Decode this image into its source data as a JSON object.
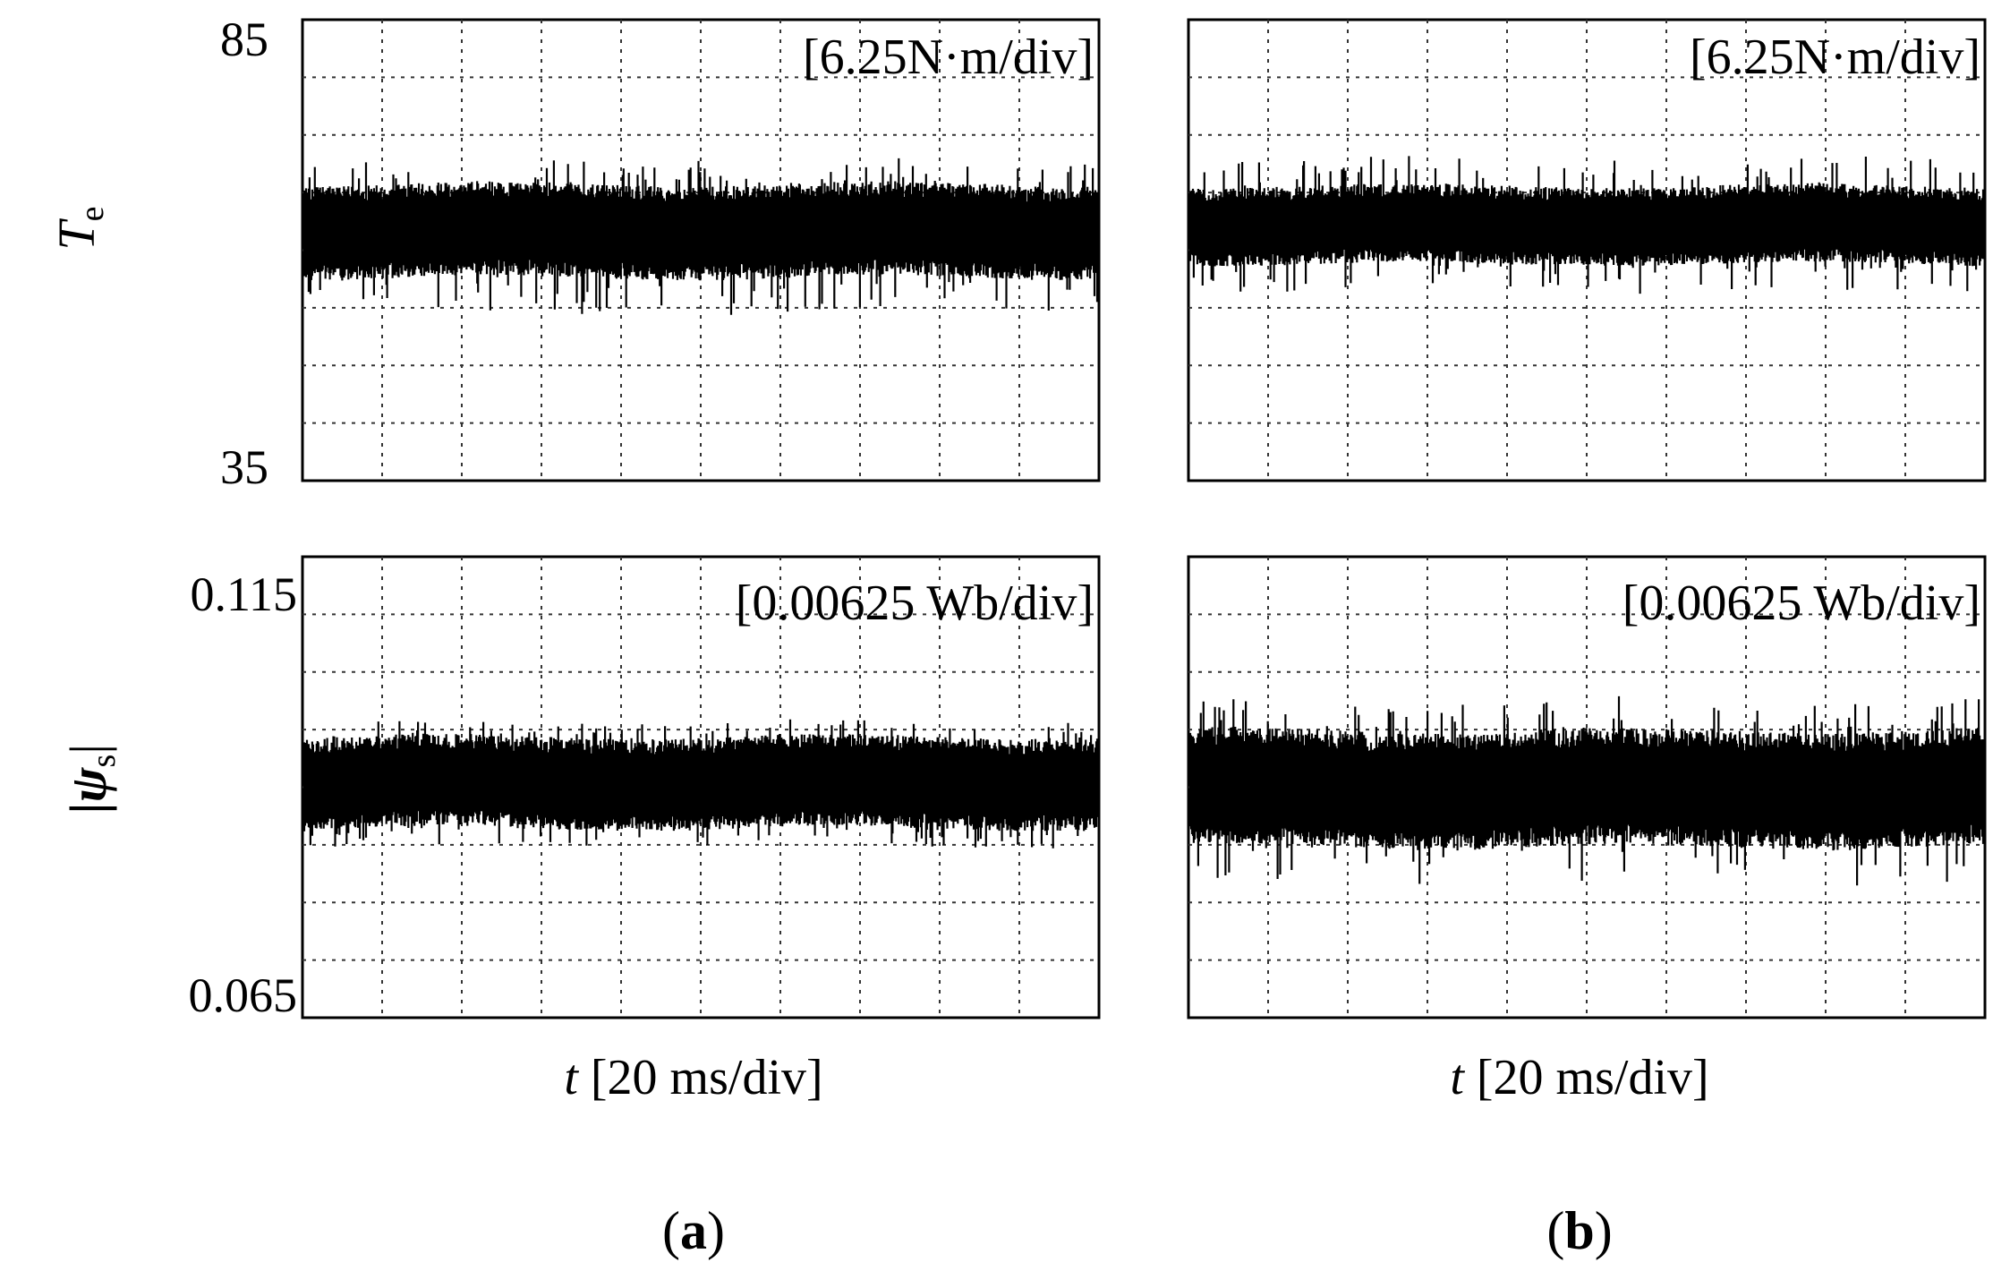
{
  "chart_data": [
    {
      "type": "line",
      "panel": "a",
      "quantity": "Te",
      "ylabel_symbol": "T",
      "ylabel_subscript": "e",
      "scale_label": "[6.25N·m/div]",
      "xlabel_var": "t",
      "xlabel_text": "[20 ms/div]",
      "ylim": [
        35,
        85
      ],
      "ytick_labels": [
        "85",
        "35"
      ],
      "time_divisions": 10,
      "value_divisions": 8,
      "grid": true,
      "series": [
        {
          "mean": 62.3,
          "band_lower": 57.0,
          "band_upper": 67.2,
          "spike_min": 53.0,
          "spike_max": 70.0
        }
      ]
    },
    {
      "type": "line",
      "panel": "b",
      "quantity": "Te",
      "scale_label": "[6.25N·m/div]",
      "xlabel_var": "t",
      "xlabel_text": "[20 ms/div]",
      "ylim": [
        35,
        85
      ],
      "time_divisions": 10,
      "value_divisions": 8,
      "grid": true,
      "series": [
        {
          "mean": 62.5,
          "band_lower": 58.5,
          "band_upper": 67.0,
          "spike_min": 55.5,
          "spike_max": 70.0
        }
      ]
    },
    {
      "type": "line",
      "panel": "a",
      "quantity": "|ψs|",
      "ylabel_text": "|ψ",
      "ylabel_subscript": "s",
      "ylabel_close": "|",
      "scale_label": "[0.00625 Wb/div]",
      "xlabel_var": "t",
      "xlabel_text": "[20 ms/div]",
      "ylim": [
        0.065,
        0.115
      ],
      "ytick_labels": [
        "0.115",
        "0.065"
      ],
      "time_divisions": 10,
      "value_divisions": 8,
      "grid": true,
      "series": [
        {
          "mean": 0.0903,
          "band_lower": 0.0855,
          "band_upper": 0.0955,
          "spike_min": 0.0835,
          "spike_max": 0.0972
        }
      ]
    },
    {
      "type": "line",
      "panel": "b",
      "quantity": "|ψs|",
      "scale_label": "[0.00625 Wb/div]",
      "xlabel_var": "t",
      "xlabel_text": "[20 ms/div]",
      "ylim": [
        0.065,
        0.115
      ],
      "time_divisions": 10,
      "value_divisions": 8,
      "grid": true,
      "series": [
        {
          "mean": 0.0897,
          "band_lower": 0.0835,
          "band_upper": 0.0962,
          "spike_min": 0.0795,
          "spike_max": 0.0995
        }
      ]
    }
  ],
  "panel_labels": [
    "a",
    "b"
  ]
}
